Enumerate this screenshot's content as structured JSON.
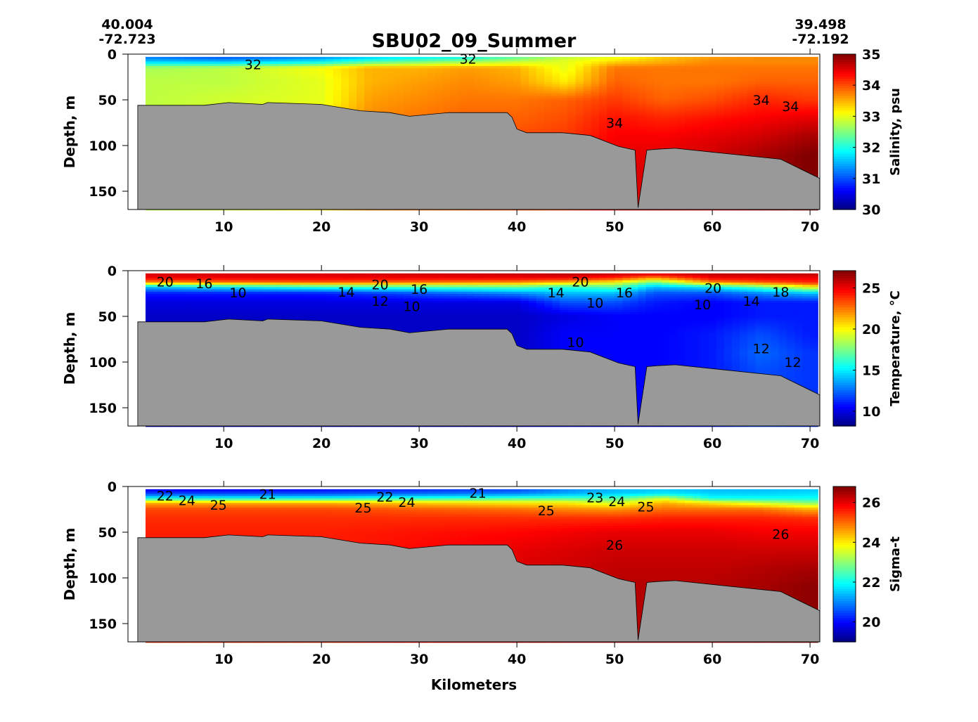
{
  "chart_data": {
    "title": "SBU02_09_Summer",
    "start_coord": {
      "lat": "40.004",
      "lon": "-72.723"
    },
    "end_coord": {
      "lat": "39.498",
      "lon": "-72.192"
    },
    "xlabel": "Kilometers",
    "xlim": [
      0.2,
      71
    ],
    "xticks": [
      10,
      20,
      30,
      40,
      50,
      60,
      70
    ],
    "bathymetry": {
      "km": [
        1.2,
        1.2,
        8,
        10.5,
        14,
        14.5,
        20,
        24,
        27,
        29,
        33,
        39,
        39.5,
        40,
        41,
        44.7,
        47.5,
        50.4,
        52.1,
        52.4,
        53.3,
        54.4,
        56.2,
        67,
        71,
        71
      ],
      "depth": [
        170,
        56,
        56,
        53,
        55,
        53,
        55,
        62,
        64,
        68,
        64,
        64,
        69,
        82,
        86,
        86,
        89,
        101,
        105,
        168,
        105,
        104,
        103,
        115,
        136,
        170
      ]
    },
    "data_extent": {
      "km": [
        2,
        70
      ],
      "top_depth": 3
    },
    "panels": [
      {
        "type": "heatmap",
        "ylabel": "Depth, m",
        "ylim": [
          0,
          170
        ],
        "yticks": [
          0,
          50,
          100,
          150
        ],
        "colorbar": {
          "label": "Salinity, psu",
          "range": [
            30,
            35
          ],
          "ticks": [
            30,
            31,
            32,
            33,
            34,
            35
          ]
        },
        "depths": [
          3,
          8,
          15,
          30,
          50,
          70,
          90,
          110,
          130,
          170
        ],
        "columns": [
          {
            "km": 2,
            "values": [
              31.2,
              31.6,
              32.7,
              32.8,
              32.8
            ]
          },
          {
            "km": 10,
            "values": [
              31.0,
              31.5,
              32.8,
              32.8,
              32.9
            ]
          },
          {
            "km": 20,
            "values": [
              31.3,
              31.8,
              33.1,
              33.0,
              33.0,
              33.2
            ]
          },
          {
            "km": 25,
            "values": [
              31.6,
              32.2,
              33.5,
              33.5,
              33.6,
              33.7
            ]
          },
          {
            "km": 30,
            "values": [
              31.8,
              32.4,
              33.5,
              33.6,
              33.7,
              33.8
            ]
          },
          {
            "km": 35,
            "values": [
              31.9,
              32.6,
              33.6,
              33.7,
              33.8,
              33.9
            ]
          },
          {
            "km": 40,
            "values": [
              32.3,
              32.8,
              33.5,
              33.6,
              33.8,
              33.9,
              34.0
            ]
          },
          {
            "km": 45,
            "values": [
              32.8,
              33.0,
              33.0,
              33.2,
              33.9,
              34.0,
              34.1
            ]
          },
          {
            "km": 50,
            "values": [
              33.0,
              33.3,
              33.8,
              33.9,
              34.1,
              34.3,
              34.4,
              34.5
            ]
          },
          {
            "km": 55,
            "values": [
              33.4,
              33.5,
              33.8,
              33.8,
              33.9,
              34.2,
              34.4,
              34.5,
              34.6
            ]
          },
          {
            "km": 60,
            "values": [
              33.6,
              33.7,
              33.8,
              33.8,
              34.0,
              34.3,
              34.5,
              34.6
            ]
          },
          {
            "km": 65,
            "values": [
              33.7,
              33.7,
              33.8,
              33.9,
              34.2,
              34.4,
              34.6,
              34.8
            ]
          },
          {
            "km": 70,
            "values": [
              33.7,
              33.7,
              33.8,
              33.9,
              34.1,
              34.5,
              34.8,
              35.0,
              35.0,
              35.0
            ]
          }
        ],
        "contour_labels": [
          {
            "text": "32",
            "km": 13,
            "depth": 11
          },
          {
            "text": "32",
            "km": 35,
            "depth": 5
          },
          {
            "text": "34",
            "km": 50,
            "depth": 75
          },
          {
            "text": "34",
            "km": 65,
            "depth": 50
          },
          {
            "text": "34",
            "km": 68,
            "depth": 57
          }
        ]
      },
      {
        "type": "heatmap",
        "ylabel": "Depth, m",
        "ylim": [
          0,
          170
        ],
        "yticks": [
          0,
          50,
          100,
          150
        ],
        "colorbar": {
          "label": "Temperature, °C",
          "range": [
            8.2,
            27.1
          ],
          "ticks": [
            10,
            15,
            20,
            25
          ]
        },
        "depths": [
          3,
          8,
          13,
          18,
          25,
          35,
          50,
          70,
          90,
          110,
          130,
          170
        ],
        "columns": [
          {
            "km": 2,
            "values": [
              25.5,
              25,
              22,
              14,
              11,
              10,
              9.5,
              9.5
            ]
          },
          {
            "km": 20,
            "values": [
              25.5,
              25,
              23,
              16,
              11,
              10,
              9.5,
              9.5
            ]
          },
          {
            "km": 40,
            "values": [
              25.8,
              25,
              22,
              17,
              13,
              10,
              9.5,
              9.5,
              9.5
            ]
          },
          {
            "km": 45,
            "values": [
              26,
              25,
              21,
              16,
              14,
              12,
              10,
              10.5,
              10.5
            ]
          },
          {
            "km": 50,
            "values": [
              26,
              24,
              20,
              17,
              14,
              12,
              10.5,
              10.5,
              10.5,
              10.5
            ]
          },
          {
            "km": 54,
            "values": [
              26,
              22,
              17,
              14,
              12,
              11,
              10.5,
              10.5,
              10.5,
              10.5
            ]
          },
          {
            "km": 60,
            "values": [
              26,
              25,
              22,
              15,
              12,
              10.5,
              10.5,
              11,
              11,
              11
            ]
          },
          {
            "km": 65,
            "values": [
              26,
              25,
              23,
              17,
              13,
              11,
              11,
              12,
              12.5,
              12
            ]
          },
          {
            "km": 70,
            "values": [
              26,
              25,
              24,
              20,
              14,
              11,
              11,
              11,
              11.5,
              11.5,
              11.5,
              11.5
            ]
          }
        ],
        "contour_labels": [
          {
            "text": "20",
            "km": 4,
            "depth": 12
          },
          {
            "text": "16",
            "km": 8,
            "depth": 14
          },
          {
            "text": "10",
            "km": 7,
            "depth": 24
          },
          {
            "text": "20",
            "km": 26,
            "depth": 15
          },
          {
            "text": "16",
            "km": 30,
            "depth": 20
          },
          {
            "text": "14",
            "km": 27,
            "depth": 23
          },
          {
            "text": "12",
            "km": 26,
            "depth": 33
          },
          {
            "text": "10",
            "km": 27,
            "depth": 39
          },
          {
            "text": "20",
            "km": 46.5,
            "depth": 12
          },
          {
            "text": "14",
            "km": 44,
            "depth": 24
          },
          {
            "text": "10",
            "km": 48,
            "depth": 35
          },
          {
            "text": "16",
            "km": 51,
            "depth": 24
          },
          {
            "text": "10",
            "km": 46,
            "depth": 78
          },
          {
            "text": "10",
            "km": 59,
            "depth": 37
          },
          {
            "text": "14",
            "km": 64,
            "depth": 33
          },
          {
            "text": "18",
            "km": 67,
            "depth": 23
          },
          {
            "text": "20",
            "km": 69,
            "depth": 19
          },
          {
            "text": "12",
            "km": 65,
            "depth": 85
          },
          {
            "text": "12",
            "km": 66,
            "depth": 100
          }
        ]
      },
      {
        "type": "heatmap",
        "ylabel": "Depth, m",
        "ylim": [
          0,
          170
        ],
        "yticks": [
          0,
          50,
          100,
          150
        ],
        "colorbar": {
          "label": "Sigma-t",
          "range": [
            19.0,
            26.8
          ],
          "ticks": [
            20,
            22,
            24,
            26
          ]
        },
        "depths": [
          3,
          8,
          13,
          18,
          25,
          35,
          50,
          70,
          90,
          110,
          130,
          170
        ],
        "columns": [
          {
            "km": 2,
            "values": [
              19.8,
              20.5,
              22,
              24.5,
              25.3,
              25.5,
              25.6,
              25.6
            ]
          },
          {
            "km": 20,
            "values": [
              20,
              20.6,
              22,
              24.5,
              25.3,
              25.5,
              25.6
            ]
          },
          {
            "km": 40,
            "values": [
              20.5,
              21,
              22.5,
              24,
              25,
              25.5,
              25.8,
              26.0,
              26.1
            ]
          },
          {
            "km": 45,
            "values": [
              21,
              21.3,
              22.5,
              24,
              24.8,
              25.5,
              25.9,
              26.1,
              26.2
            ]
          },
          {
            "km": 50,
            "values": [
              21.4,
              21.5,
              22.5,
              23.5,
              24.7,
              25.5,
              26,
              26.2,
              26.3,
              26.4
            ]
          },
          {
            "km": 55,
            "values": [
              21.5,
              21.8,
              23.5,
              24.5,
              25,
              25.6,
              26,
              26.2,
              26.3,
              26.4
            ]
          },
          {
            "km": 60,
            "values": [
              21.4,
              21.6,
              22,
              24,
              25,
              25.6,
              26,
              26.2,
              26.3,
              26.4
            ]
          },
          {
            "km": 65,
            "values": [
              21.4,
              21.6,
              22,
              23.5,
              25,
              25.6,
              25.9,
              26.2,
              26.4,
              26.5
            ]
          },
          {
            "km": 70,
            "values": [
              21.5,
              21.7,
              22,
              23,
              24.5,
              25.5,
              25.9,
              26.2,
              26.5,
              26.7,
              26.7,
              26.7
            ]
          }
        ],
        "contour_labels": [
          {
            "text": "22",
            "km": 4,
            "depth": 10
          },
          {
            "text": "24",
            "km": 4,
            "depth": 15
          },
          {
            "text": "25",
            "km": 5,
            "depth": 20
          },
          {
            "text": "21",
            "km": 14.5,
            "depth": 8
          },
          {
            "text": "22",
            "km": 26.5,
            "depth": 11
          },
          {
            "text": "24",
            "km": 26.5,
            "depth": 17
          },
          {
            "text": "25",
            "km": 26.5,
            "depth": 23
          },
          {
            "text": "21",
            "km": 36,
            "depth": 7
          },
          {
            "text": "25",
            "km": 43,
            "depth": 26
          },
          {
            "text": "23",
            "km": 48,
            "depth": 12
          },
          {
            "text": "24",
            "km": 48,
            "depth": 16
          },
          {
            "text": "25",
            "km": 46.5,
            "depth": 22
          },
          {
            "text": "26",
            "km": 50,
            "depth": 64
          },
          {
            "text": "26",
            "km": 67,
            "depth": 52
          }
        ]
      }
    ]
  }
}
